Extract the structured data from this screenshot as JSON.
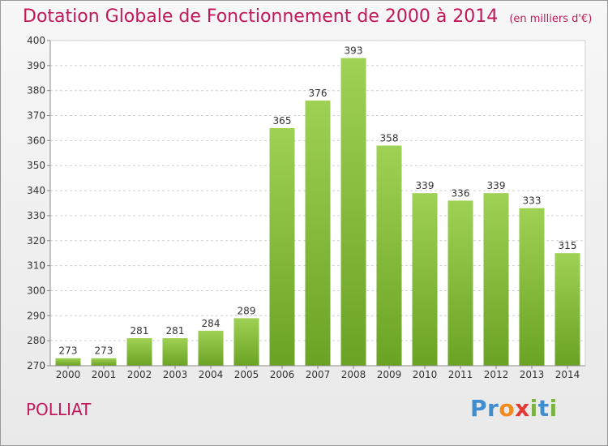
{
  "title": "Dotation Globale de Fonctionnement de 2000 à 2014",
  "unit": "(en milliers d'€)",
  "commune": "POLLIAT",
  "brand": {
    "letters": [
      "P",
      "r",
      "o",
      "x",
      "i",
      "t",
      "i"
    ],
    "colors": [
      "#3f8fd0",
      "#3f8fd0",
      "#f28a1e",
      "#e53935",
      "#7cb342",
      "#3f8fd0",
      "#7cb342"
    ]
  },
  "colors": {
    "bar_light": "#9fd154",
    "bar_dark": "#6aa324",
    "title": "#c2185b"
  },
  "chart_data": {
    "type": "bar",
    "categories": [
      "2000",
      "2001",
      "2002",
      "2003",
      "2004",
      "2005",
      "2006",
      "2007",
      "2008",
      "2009",
      "2010",
      "2011",
      "2012",
      "2013",
      "2014"
    ],
    "values": [
      273,
      273,
      281,
      281,
      284,
      289,
      365,
      376,
      393,
      358,
      339,
      336,
      339,
      333,
      315
    ],
    "ylim": [
      270,
      400
    ],
    "yticks": [
      270,
      280,
      290,
      300,
      310,
      320,
      330,
      340,
      350,
      360,
      370,
      380,
      390,
      400
    ],
    "grid": true
  }
}
